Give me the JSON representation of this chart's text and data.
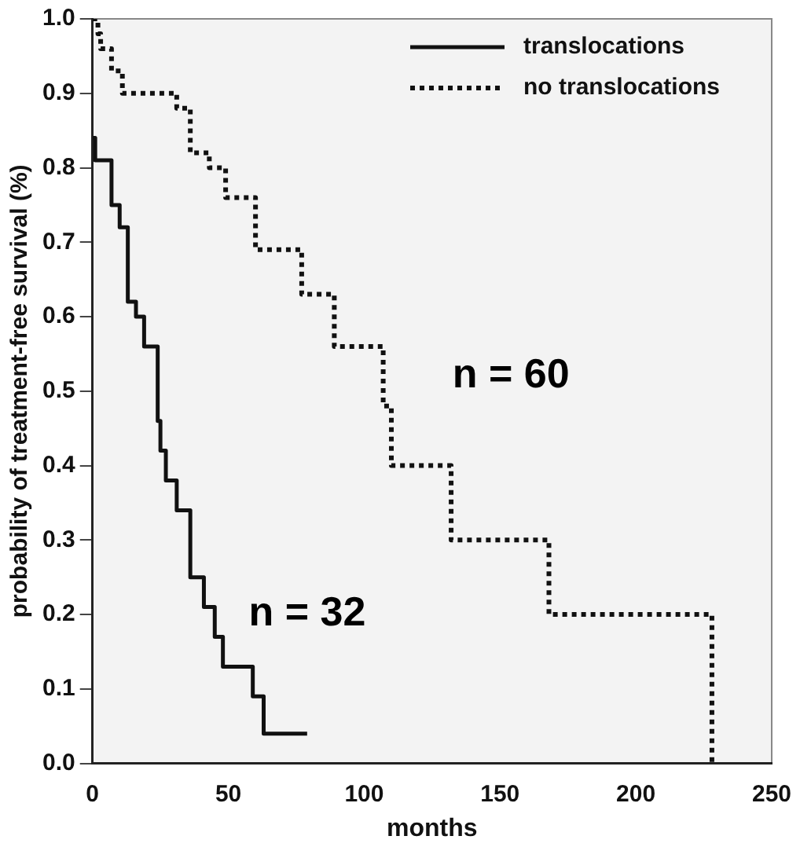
{
  "chart_data": {
    "type": "step",
    "xlabel": "months",
    "ylabel": "probability of treatment-free survival (%)",
    "series": [
      {
        "name": "translocations",
        "color": "#111111",
        "line_style": "solid",
        "x": [
          0,
          1,
          7,
          10,
          13,
          16,
          19,
          24,
          25,
          27,
          31,
          36,
          41,
          45,
          48,
          59,
          63,
          79
        ],
        "values": [
          0.84,
          0.81,
          0.75,
          0.72,
          0.62,
          0.6,
          0.56,
          0.46,
          0.42,
          0.38,
          0.34,
          0.25,
          0.21,
          0.17,
          0.13,
          0.09,
          0.04,
          0.04
        ]
      },
      {
        "name": "no translocations",
        "color": "#111111",
        "line_style": "dotted",
        "x": [
          0,
          2,
          3,
          7,
          11,
          31,
          36,
          43,
          49,
          60,
          77,
          89,
          107,
          110,
          132,
          168,
          228,
          228
        ],
        "values": [
          1.0,
          0.98,
          0.96,
          0.93,
          0.9,
          0.88,
          0.82,
          0.8,
          0.76,
          0.69,
          0.63,
          0.56,
          0.48,
          0.4,
          0.3,
          0.2,
          0.2,
          0.0
        ]
      }
    ],
    "xlim": [
      0,
      250
    ],
    "xticks": [
      0,
      50,
      100,
      150,
      200,
      250
    ],
    "ylim": [
      0,
      1
    ],
    "yticks": [
      {
        "value": 0,
        "label": "0.0"
      },
      {
        "value": 0.1,
        "label": "0.1"
      },
      {
        "value": 0.2,
        "label": "0.2"
      },
      {
        "value": 0.3,
        "label": "0.3"
      },
      {
        "value": 0.4,
        "label": "0.4"
      },
      {
        "value": 0.5,
        "label": "0.5"
      },
      {
        "value": 0.6,
        "label": "0.6"
      },
      {
        "value": 0.7,
        "label": "0.7"
      },
      {
        "value": 0.8,
        "label": "0.8"
      },
      {
        "value": 0.9,
        "label": "0.9"
      },
      {
        "value": 1,
        "label": "1.0"
      }
    ],
    "annotations": [
      "n = 60",
      "n = 32"
    ],
    "legend": "top right",
    "marker": "none"
  }
}
